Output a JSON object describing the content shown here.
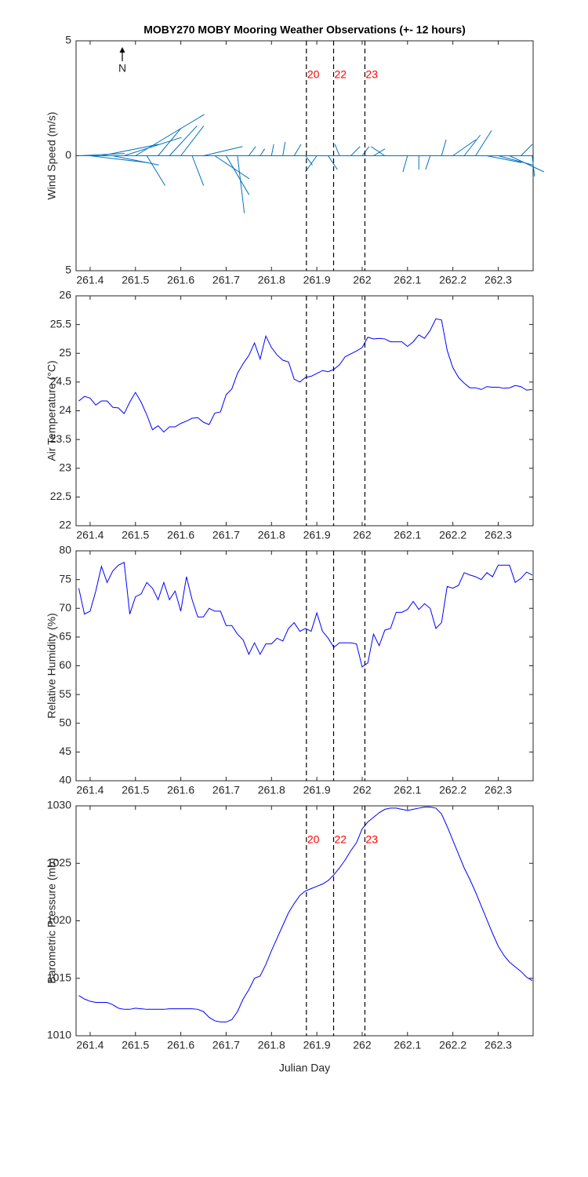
{
  "chart_data": [
    {
      "type": "quiver",
      "title": "MOBY270 MOBY Mooring Weather Observations (+- 12 hours)",
      "ylabel": "Wind Speed (m/s)",
      "north_label": "N",
      "color": "#0072bd",
      "x": [
        261.375,
        261.4,
        261.425,
        261.45,
        261.475,
        261.5,
        261.525,
        261.55,
        261.575,
        261.6,
        261.625,
        261.65,
        261.675,
        261.7,
        261.725,
        261.75,
        261.775,
        261.8,
        261.825,
        261.85,
        261.875,
        261.9,
        261.925,
        261.95,
        261.975,
        262,
        262.025,
        262.05,
        262.075,
        262.1,
        262.125,
        262.15,
        262.175,
        262.2,
        262.225,
        262.25,
        262.275,
        262.3,
        262.325,
        262.35,
        262.375
      ],
      "u": [
        2.0,
        2.5,
        2.5,
        2.0,
        2.5,
        3.0,
        0.8,
        1.0,
        1.2,
        1.0,
        0.5,
        1.7,
        1.5,
        1.0,
        0.3,
        0.3,
        0.2,
        0.1,
        0.1,
        0.3,
        0.3,
        -0.5,
        0.4,
        -0.2,
        0.4,
        0.3,
        0.5,
        -0.6,
        -0.2,
        -0.2,
        0.0,
        -0.2,
        0.2,
        1.0,
        0.7,
        0.7,
        1.5,
        1.5,
        1.5,
        0.5,
        0.1
      ],
      "v": [
        0.1,
        -0.3,
        0.5,
        -0.4,
        0.8,
        1.8,
        -1.3,
        1.2,
        1.3,
        1.3,
        -1.3,
        0.4,
        -1.0,
        -1.7,
        -2.5,
        0.4,
        0.3,
        0.5,
        0.6,
        0.5,
        -0.4,
        -0.7,
        -0.6,
        0.5,
        0.4,
        0.4,
        0.3,
        0.4,
        0.0,
        -0.7,
        -0.6,
        -0.6,
        0.7,
        0.7,
        0.9,
        1.1,
        -0.3,
        -0.4,
        -0.7,
        0.5,
        -0.9
      ],
      "xlim": [
        261.369,
        262.377
      ],
      "xticks": [
        261.4,
        261.5,
        261.6,
        261.7,
        261.8,
        261.9,
        262,
        262.1,
        262.2,
        262.3
      ],
      "ylim": [
        -5,
        5
      ],
      "yticks": [
        {
          "value": -5,
          "label": "5"
        },
        0,
        5
      ],
      "vlines": [
        261.877,
        261.937,
        262.006
      ],
      "vline_labels": [
        "20",
        "22",
        "23"
      ],
      "vline_color": "#ff0000"
    },
    {
      "type": "line",
      "ylabel": "Air Temperature (°C)",
      "color": "#0000ff",
      "x": [
        261.375,
        261.3875,
        261.4,
        261.4125,
        261.425,
        261.4375,
        261.45,
        261.4625,
        261.475,
        261.4875,
        261.5,
        261.5125,
        261.525,
        261.5375,
        261.55,
        261.5625,
        261.575,
        261.5875,
        261.6,
        261.6125,
        261.625,
        261.6375,
        261.65,
        261.6625,
        261.675,
        261.6875,
        261.7,
        261.7125,
        261.725,
        261.7375,
        261.75,
        261.7625,
        261.775,
        261.7875,
        261.8,
        261.8125,
        261.825,
        261.8375,
        261.85,
        261.8625,
        261.875,
        261.8875,
        261.9,
        261.9125,
        261.925,
        261.9375,
        261.95,
        261.9625,
        261.975,
        261.9875,
        262,
        262.0125,
        262.025,
        262.0375,
        262.05,
        262.0625,
        262.075,
        262.0875,
        262.1,
        262.1125,
        262.125,
        262.1375,
        262.15,
        262.1625,
        262.175,
        262.1875,
        262.2,
        262.2125,
        262.225,
        262.2375,
        262.25,
        262.2625,
        262.275,
        262.2875,
        262.3,
        262.3125,
        262.325,
        262.3375,
        262.35,
        262.3625,
        262.375
      ],
      "values": [
        24.17,
        24.25,
        24.22,
        24.1,
        24.17,
        24.17,
        24.06,
        24.05,
        23.95,
        24.15,
        24.32,
        24.15,
        23.93,
        23.67,
        23.74,
        23.63,
        23.72,
        23.72,
        23.78,
        23.82,
        23.87,
        23.88,
        23.8,
        23.76,
        23.96,
        23.98,
        24.28,
        24.38,
        24.65,
        24.82,
        24.96,
        25.18,
        24.9,
        25.3,
        25.1,
        24.97,
        24.88,
        24.85,
        24.55,
        24.5,
        24.58,
        24.6,
        24.65,
        24.7,
        24.68,
        24.72,
        24.8,
        24.94,
        24.99,
        25.04,
        25.1,
        25.28,
        25.25,
        25.26,
        25.25,
        25.2,
        25.2,
        25.2,
        25.12,
        25.2,
        25.32,
        25.26,
        25.4,
        25.6,
        25.58,
        25.05,
        24.75,
        24.58,
        24.48,
        24.4,
        24.4,
        24.37,
        24.42,
        24.41,
        24.41,
        24.39,
        24.4,
        24.44,
        24.42,
        24.36,
        24.37
      ],
      "xlim": [
        261.369,
        262.377
      ],
      "xticks": [
        261.4,
        261.5,
        261.6,
        261.7,
        261.8,
        261.9,
        262,
        262.1,
        262.2,
        262.3
      ],
      "ylim": [
        22,
        26
      ],
      "yticks": [
        22,
        22.5,
        23,
        23.5,
        24,
        24.5,
        25,
        25.5,
        26
      ],
      "vlines": [
        261.877,
        261.937,
        262.006
      ]
    },
    {
      "type": "line",
      "ylabel": "Relative Humidity (%)",
      "color": "#0000ff",
      "x": [
        261.375,
        261.3875,
        261.4,
        261.4125,
        261.425,
        261.4375,
        261.45,
        261.4625,
        261.475,
        261.4875,
        261.5,
        261.5125,
        261.525,
        261.5375,
        261.55,
        261.5625,
        261.575,
        261.5875,
        261.6,
        261.6125,
        261.625,
        261.6375,
        261.65,
        261.6625,
        261.675,
        261.6875,
        261.7,
        261.7125,
        261.725,
        261.7375,
        261.75,
        261.7625,
        261.775,
        261.7875,
        261.8,
        261.8125,
        261.825,
        261.8375,
        261.85,
        261.8625,
        261.875,
        261.8875,
        261.9,
        261.9125,
        261.925,
        261.9375,
        261.95,
        261.9625,
        261.975,
        261.9875,
        262,
        262.0125,
        262.025,
        262.0375,
        262.05,
        262.0625,
        262.075,
        262.0875,
        262.1,
        262.1125,
        262.125,
        262.1375,
        262.15,
        262.1625,
        262.175,
        262.1875,
        262.2,
        262.2125,
        262.225,
        262.2375,
        262.25,
        262.2625,
        262.275,
        262.2875,
        262.3,
        262.3125,
        262.325,
        262.3375,
        262.35,
        262.3625,
        262.375
      ],
      "values": [
        73.5,
        69,
        69.5,
        73,
        77.3,
        74.5,
        76.5,
        77.5,
        78,
        69,
        72,
        72.5,
        74.5,
        73.5,
        71.5,
        74.5,
        71.5,
        73,
        69.5,
        75.5,
        71.5,
        68.5,
        68.5,
        70,
        69.5,
        69.5,
        67,
        67,
        65.5,
        64.5,
        62,
        64,
        62,
        63.8,
        63.8,
        64.8,
        64.3,
        66.5,
        67.5,
        66,
        66.5,
        66,
        69.2,
        66,
        64.8,
        63.2,
        64,
        64,
        64,
        63.8,
        59.8,
        60.5,
        65.5,
        63.5,
        66.2,
        66.5,
        69.3,
        69.3,
        69.8,
        71.2,
        69.8,
        70.8,
        70,
        66.5,
        67.5,
        73.8,
        73.5,
        74,
        76.2,
        75.8,
        75.5,
        75,
        76.2,
        75.5,
        77.5,
        77.5,
        77.5,
        74.5,
        75.2,
        76.3,
        75.8
      ],
      "xlim": [
        261.369,
        262.377
      ],
      "xticks": [
        261.4,
        261.5,
        261.6,
        261.7,
        261.8,
        261.9,
        262,
        262.1,
        262.2,
        262.3
      ],
      "ylim": [
        40,
        80
      ],
      "yticks": [
        40,
        45,
        50,
        55,
        60,
        65,
        70,
        75,
        80
      ],
      "vlines": [
        261.877,
        261.937,
        262.006
      ]
    },
    {
      "type": "line",
      "ylabel": "Barometric Pressure (mb)",
      "xlabel": "Julian Day",
      "color": "#0000ff",
      "x": [
        261.375,
        261.3875,
        261.4,
        261.4125,
        261.425,
        261.4375,
        261.45,
        261.4625,
        261.475,
        261.4875,
        261.5,
        261.5125,
        261.525,
        261.5375,
        261.55,
        261.5625,
        261.575,
        261.5875,
        261.6,
        261.6125,
        261.625,
        261.6375,
        261.65,
        261.6625,
        261.675,
        261.6875,
        261.7,
        261.7125,
        261.725,
        261.7375,
        261.75,
        261.7625,
        261.775,
        261.7875,
        261.8,
        261.8125,
        261.825,
        261.8375,
        261.85,
        261.8625,
        261.875,
        261.8875,
        261.9,
        261.9125,
        261.925,
        261.9375,
        261.95,
        261.9625,
        261.975,
        261.9875,
        262,
        262.0125,
        262.025,
        262.0375,
        262.05,
        262.0625,
        262.075,
        262.0875,
        262.1,
        262.1125,
        262.125,
        262.1375,
        262.15,
        262.1625,
        262.175,
        262.1875,
        262.2,
        262.2125,
        262.225,
        262.2375,
        262.25,
        262.2625,
        262.275,
        262.2875,
        262.3,
        262.3125,
        262.325,
        262.3375,
        262.35,
        262.3625,
        262.375
      ],
      "values": [
        1013.5,
        1013.2,
        1013,
        1012.9,
        1012.9,
        1012.9,
        1012.7,
        1012.4,
        1012.3,
        1012.3,
        1012.4,
        1012.35,
        1012.3,
        1012.3,
        1012.3,
        1012.3,
        1012.35,
        1012.35,
        1012.35,
        1012.35,
        1012.35,
        1012.3,
        1012.1,
        1011.6,
        1011.3,
        1011.2,
        1011.2,
        1011.4,
        1012.1,
        1013.2,
        1014,
        1015,
        1015.2,
        1016.2,
        1017.4,
        1018.5,
        1019.6,
        1020.7,
        1021.5,
        1022.2,
        1022.6,
        1022.8,
        1023,
        1023.2,
        1023.5,
        1024,
        1024.6,
        1025.3,
        1026.1,
        1026.8,
        1028,
        1028.6,
        1029,
        1029.4,
        1029.7,
        1029.8,
        1029.8,
        1029.7,
        1029.6,
        1029.7,
        1029.8,
        1029.9,
        1029.9,
        1029.8,
        1029.3,
        1028.2,
        1027,
        1025.8,
        1024.6,
        1023.6,
        1022.5,
        1021.3,
        1020.1,
        1018.9,
        1017.8,
        1017,
        1016.4,
        1016,
        1015.6,
        1015.1,
        1014.8
      ],
      "xlim": [
        261.369,
        262.377
      ],
      "xticks": [
        261.4,
        261.5,
        261.6,
        261.7,
        261.8,
        261.9,
        262,
        262.1,
        262.2,
        262.3
      ],
      "ylim": [
        1010,
        1030
      ],
      "yticks": [
        1010,
        1015,
        1020,
        1025,
        1030
      ],
      "vlines": [
        261.877,
        261.937,
        262.006
      ],
      "vline_labels": [
        "20",
        "22",
        "23"
      ],
      "vline_color": "#ff0000"
    }
  ]
}
